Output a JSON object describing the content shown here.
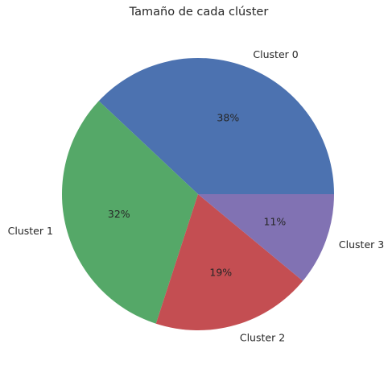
{
  "chart_data": {
    "type": "pie",
    "title": "Tamaño de cada clúster",
    "categories": [
      "Cluster 0",
      "Cluster 1",
      "Cluster 2",
      "Cluster 3"
    ],
    "values": [
      38,
      32,
      19,
      11
    ],
    "percent_labels": [
      "38%",
      "32%",
      "19%",
      "11%"
    ],
    "colors": [
      "#4c72b0",
      "#55a868",
      "#c44e52",
      "#8172b3"
    ],
    "start_angle_deg": 0,
    "direction": "counterclockwise",
    "legend": "none"
  }
}
